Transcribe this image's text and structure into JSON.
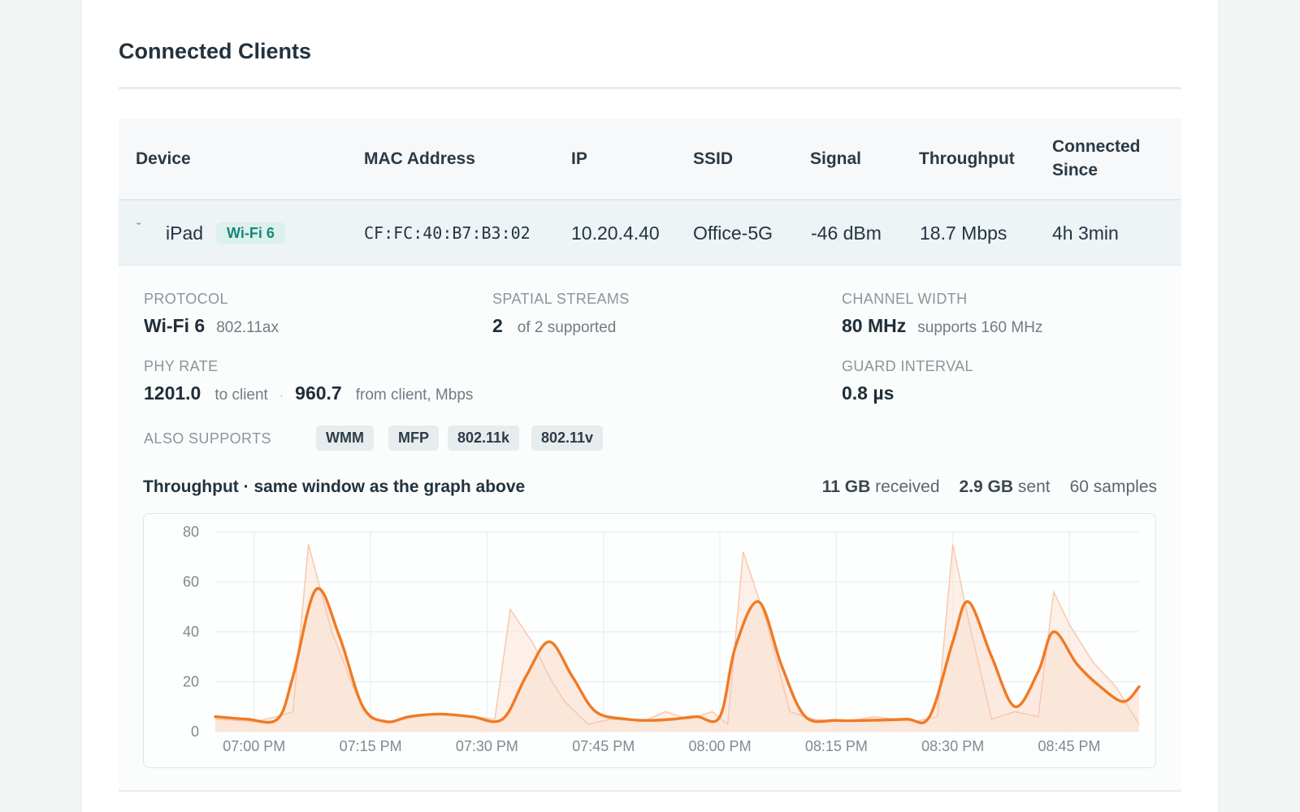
{
  "page_title": "Connected Clients",
  "table": {
    "headers": {
      "device": "Device",
      "mac": "MAC Address",
      "ip": "IP",
      "ssid": "SSID",
      "signal": "Signal",
      "throughput": "Throughput",
      "connected_since_1": "Connected",
      "connected_since_2": "Since"
    },
    "row": {
      "expand_icon": "chevron-down-icon",
      "expand_glyph": "ˇ",
      "device": "iPad",
      "badge": "Wi-Fi 6",
      "mac": "CF:FC:40:B7:B3:02",
      "ip": "10.20.4.40",
      "ssid": "Office-5G",
      "signal": "-46 dBm",
      "throughput": "18.7 Mbps",
      "connected_since": "4h 3min"
    }
  },
  "details": {
    "protocol": {
      "label": "PROTOCOL",
      "value": "Wi-Fi 6",
      "sub": "802.11ax"
    },
    "spatial_streams": {
      "label": "SPATIAL STREAMS",
      "value": "2",
      "sub": "of 2 supported"
    },
    "channel_width": {
      "label": "CHANNEL WIDTH",
      "value": "80 MHz",
      "sub": "supports 160 MHz"
    },
    "phy_rate": {
      "label": "PHY RATE",
      "to_value": "1201.0",
      "to_sub": "to client",
      "sep": "·",
      "from_value": "960.7",
      "from_sub": "from client, Mbps"
    },
    "guard_interval": {
      "label": "GUARD INTERVAL",
      "value": "0.8 µs"
    },
    "also_supports": {
      "label": "ALSO SUPPORTS",
      "items": [
        "WMM",
        "MFP",
        "802.11k",
        "802.11v"
      ]
    }
  },
  "throughput": {
    "title": "Throughput · same window as the graph above",
    "received_value": "11 GB",
    "received_label": "received",
    "sent_value": "2.9 GB",
    "sent_label": "sent",
    "samples": "60 samples"
  },
  "colors": {
    "line": "#f07a24",
    "fill": "#fbe3d6",
    "raw": "#f7c6aa",
    "badge_text": "#16897a"
  },
  "chart_data": {
    "type": "area",
    "title": "",
    "xlabel": "",
    "ylabel": "",
    "ylim": [
      0,
      80
    ],
    "yticks": [
      0,
      20,
      40,
      60,
      80
    ],
    "xlim": [
      "06:55 PM",
      "08:54 PM"
    ],
    "x_ticks": [
      "07:00 PM",
      "07:15 PM",
      "07:30 PM",
      "07:45 PM",
      "08:00 PM",
      "08:15 PM",
      "08:30 PM",
      "08:45 PM"
    ],
    "grid": true,
    "series": [
      {
        "kind": "smoothed",
        "x": [
          "06:55 PM",
          "06:59 PM",
          "07:03 PM",
          "07:05 PM",
          "07:08 PM",
          "07:11 PM",
          "07:14 PM",
          "07:17 PM",
          "07:20 PM",
          "07:24 PM",
          "07:28 PM",
          "07:32 PM",
          "07:35 PM",
          "07:38 PM",
          "07:41 PM",
          "07:44 PM",
          "07:48 PM",
          "07:51 PM",
          "07:54 PM",
          "07:57 PM",
          "08:00 PM",
          "08:02 PM",
          "08:05 PM",
          "08:08 PM",
          "08:11 PM",
          "08:15 PM",
          "08:19 PM",
          "08:24 PM",
          "08:27 PM",
          "08:30 PM",
          "08:32 PM",
          "08:35 PM",
          "08:38 PM",
          "08:41 PM",
          "08:43 PM",
          "08:46 PM",
          "08:49 PM",
          "08:52 PM",
          "08:54 PM"
        ],
        "values": [
          6,
          5,
          5,
          22,
          57,
          38,
          10,
          4,
          6,
          7,
          6,
          5,
          22,
          36,
          22,
          8,
          5,
          4.5,
          5,
          6,
          6,
          34,
          52,
          26,
          6,
          4.5,
          4.5,
          5,
          6,
          36,
          52,
          30,
          10,
          24,
          40,
          27,
          18,
          12,
          18
        ]
      },
      {
        "kind": "raw",
        "x": [
          "06:55 PM",
          "07:00 PM",
          "07:03 PM",
          "07:05 PM",
          "07:07 PM",
          "07:10 PM",
          "07:13 PM",
          "07:15 PM",
          "07:18 PM",
          "07:22 PM",
          "07:28 PM",
          "07:31 PM",
          "07:33 PM",
          "07:36 PM",
          "07:38 PM",
          "07:40 PM",
          "07:43 PM",
          "07:46 PM",
          "07:50 PM",
          "07:53 PM",
          "07:56 PM",
          "07:59 PM",
          "08:01 PM",
          "08:03 PM",
          "08:06 PM",
          "08:09 PM",
          "08:12 PM",
          "08:16 PM",
          "08:20 PM",
          "08:25 PM",
          "08:28 PM",
          "08:30 PM",
          "08:32 PM",
          "08:35 PM",
          "08:38 PM",
          "08:41 PM",
          "08:43 PM",
          "08:45 PM",
          "08:48 PM",
          "08:51 PM",
          "08:54 PM"
        ],
        "values": [
          5,
          4,
          6,
          8,
          75,
          40,
          16,
          5,
          4,
          7,
          6,
          5,
          49,
          35,
          22,
          12,
          3,
          5,
          4,
          8,
          5,
          8,
          3,
          72,
          44,
          8,
          5,
          4,
          6,
          4,
          6,
          75,
          45,
          5,
          8,
          6,
          56,
          43,
          28,
          18,
          3
        ]
      }
    ]
  }
}
